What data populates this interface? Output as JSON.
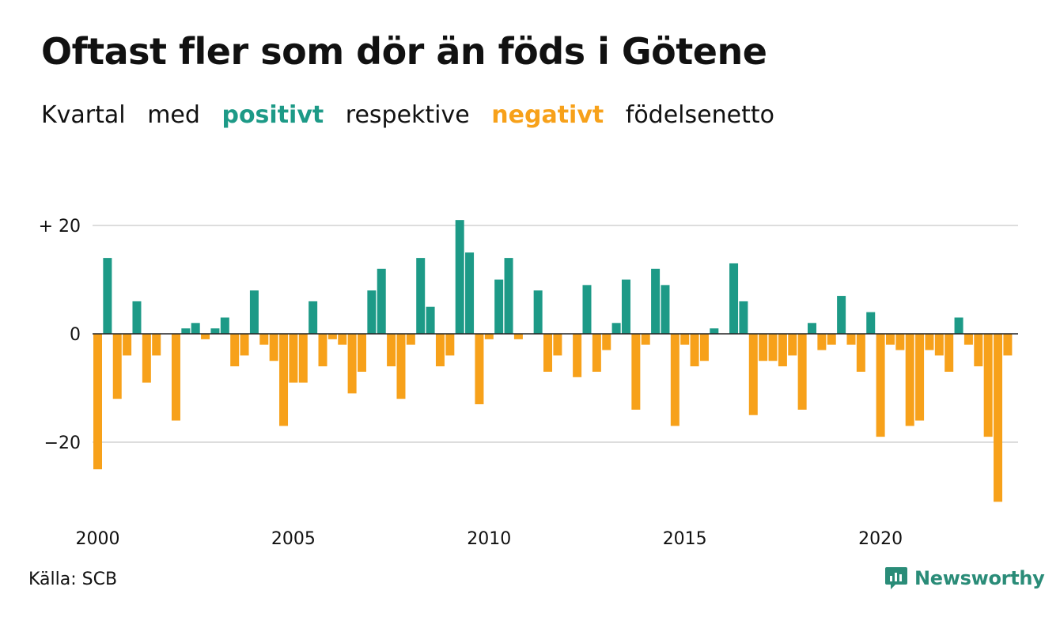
{
  "title": "Oftast fler som dör än föds i Götene",
  "subtitle": {
    "w1": "Kvartal",
    "w2": "med",
    "positive": "positivt",
    "w3": "respektive",
    "negative": "negativt",
    "w4": "födelsenetto"
  },
  "source": "Källa: SCB",
  "brand": "Newsworthy",
  "colors": {
    "positive": "#1d9a87",
    "negative": "#f7a11a",
    "grid": "#dddddd",
    "zero": "#222222",
    "text": "#111111",
    "brand": "#2a8c78"
  },
  "chart_data": {
    "type": "bar",
    "start_year": 2000,
    "periods_per_year": 4,
    "y_tick_labels": [
      "+ 20",
      "0",
      "−20"
    ],
    "y_ticks": [
      20,
      0,
      -20
    ],
    "x_tick_labels": [
      "2000",
      "2005",
      "2010",
      "2015",
      "2020"
    ],
    "ylim": [
      -31,
      21
    ],
    "grid": true,
    "values": [
      -25,
      14,
      -12,
      -4,
      6,
      -9,
      -4,
      0,
      -16,
      1,
      2,
      -1,
      1,
      3,
      -6,
      -4,
      8,
      -2,
      -5,
      -17,
      -9,
      -9,
      6,
      -6,
      -1,
      -2,
      -11,
      -7,
      8,
      12,
      -6,
      -12,
      -2,
      14,
      5,
      -6,
      -4,
      21,
      15,
      -13,
      -1,
      10,
      14,
      -1,
      0,
      8,
      -7,
      -4,
      0,
      -8,
      9,
      -7,
      -3,
      2,
      10,
      -14,
      -2,
      12,
      9,
      -17,
      -2,
      -6,
      -5,
      1,
      0,
      13,
      6,
      -15,
      -5,
      -5,
      -6,
      -4,
      -14,
      2,
      -3,
      -2,
      7,
      -2,
      -7,
      4,
      -19,
      -2,
      -3,
      -17,
      -16,
      -3,
      -4,
      -7,
      3,
      -2,
      -6,
      -19,
      -31,
      -4
    ]
  }
}
